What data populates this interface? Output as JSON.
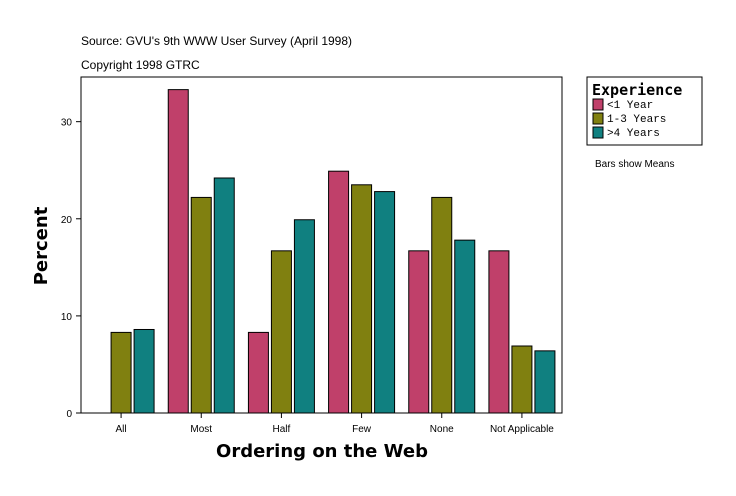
{
  "chart_data": {
    "type": "bar",
    "title": "Source: GVU's 9th WWW User Survey (April 1998)",
    "subtitle": "Copyright 1998 GTRC",
    "xlabel": "Ordering on the Web",
    "ylabel": "Percent",
    "ylim": [
      0,
      34.6
    ],
    "yticks": [
      0,
      10,
      20,
      30
    ],
    "grid": false,
    "legend_title": "Experience",
    "legend_placement": "right",
    "note": "Bars show Means",
    "categories": [
      "All",
      "Most",
      "Half",
      "Few",
      "None",
      "Not Applicable"
    ],
    "series": [
      {
        "name": "<1 Year",
        "color": "#C0406A",
        "values": [
          0,
          33.3,
          8.3,
          24.9,
          16.7,
          16.7
        ]
      },
      {
        "name": "1-3 Years",
        "color": "#808010",
        "values": [
          8.3,
          22.2,
          16.7,
          23.5,
          22.2,
          6.9
        ]
      },
      {
        "name": ">4 Years",
        "color": "#108080",
        "values": [
          8.6,
          24.2,
          19.9,
          22.8,
          17.8,
          6.4
        ]
      }
    ]
  }
}
